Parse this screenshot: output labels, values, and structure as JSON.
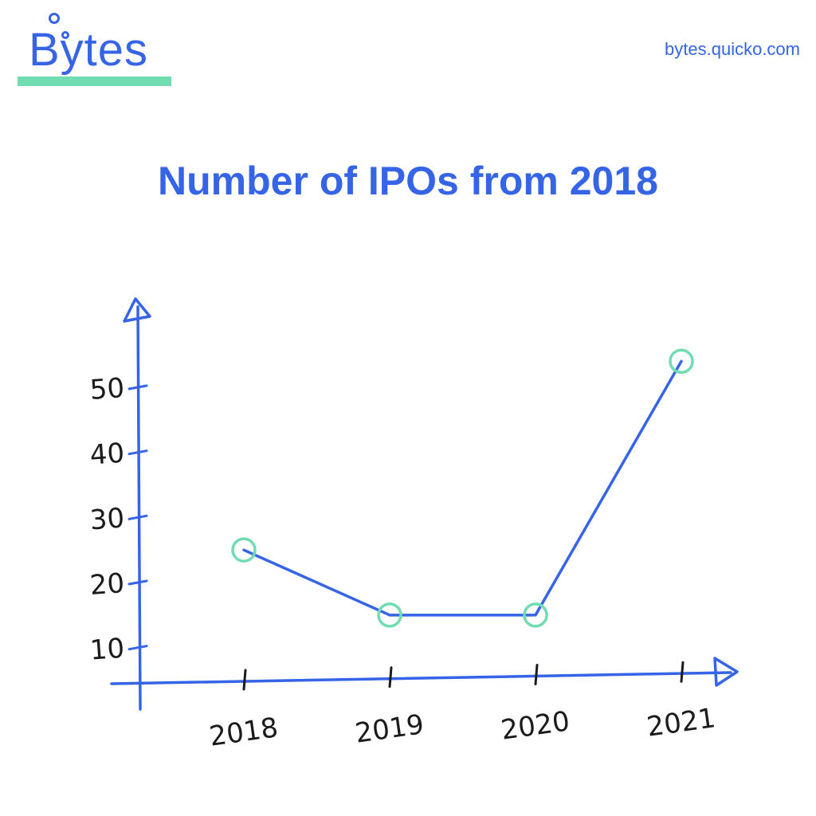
{
  "brand": {
    "logo_text": "Bytes",
    "url": "bytes.quicko.com"
  },
  "colors": {
    "accent": "#3564e6",
    "marker": "#6fdcb2",
    "ink": "#1b1b1b"
  },
  "chart_data": {
    "type": "line",
    "title": "Number of IPOs from 2018",
    "xlabel": "",
    "ylabel": "",
    "categories": [
      "2018",
      "2019",
      "2020",
      "2021"
    ],
    "series": [
      {
        "values": [
          25,
          15,
          15,
          54
        ]
      }
    ],
    "yticks": [
      "10",
      "20",
      "30",
      "40",
      "50"
    ],
    "ylim": [
      2,
      62
    ],
    "grid": false,
    "legend": "none"
  }
}
